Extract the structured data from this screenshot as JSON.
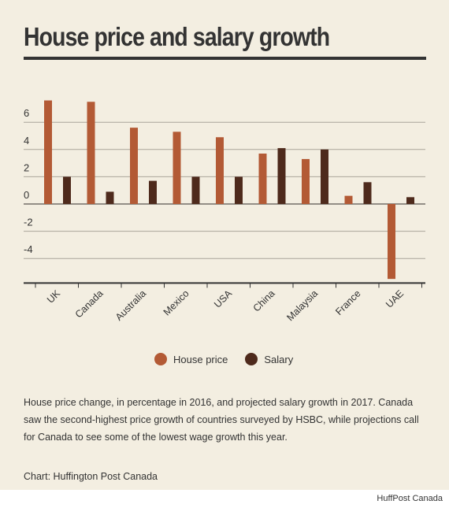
{
  "header": {
    "title": "House price and salary growth"
  },
  "chart_data": {
    "type": "bar",
    "categories": [
      "UK",
      "Canada",
      "Australia",
      "Mexico",
      "USA",
      "China",
      "Malaysia",
      "France",
      "UAE"
    ],
    "series": [
      {
        "name": "House price",
        "color": "#b35a35",
        "values": [
          7.6,
          7.5,
          5.6,
          5.3,
          4.9,
          3.7,
          3.3,
          0.6,
          -5.5
        ]
      },
      {
        "name": "Salary",
        "color": "#4e2a1c",
        "values": [
          2.0,
          0.9,
          1.7,
          2.0,
          2.0,
          4.1,
          4.0,
          1.6,
          0.5
        ]
      }
    ],
    "yticks": [
      -4,
      -2,
      0,
      2,
      4,
      6
    ],
    "ylim": [
      -5.8,
      8.5
    ],
    "grid": true,
    "legend_position": "bottom-center"
  },
  "caption": "House price change, in percentage in 2016, and projected salary growth in 2017. Canada saw the second-highest price growth of countries surveyed by HSBC, while projections call for Canada to see some of the lowest wage growth this year.",
  "credit": "Chart: Huffington Post Canada",
  "source": "HuffPost Canada"
}
